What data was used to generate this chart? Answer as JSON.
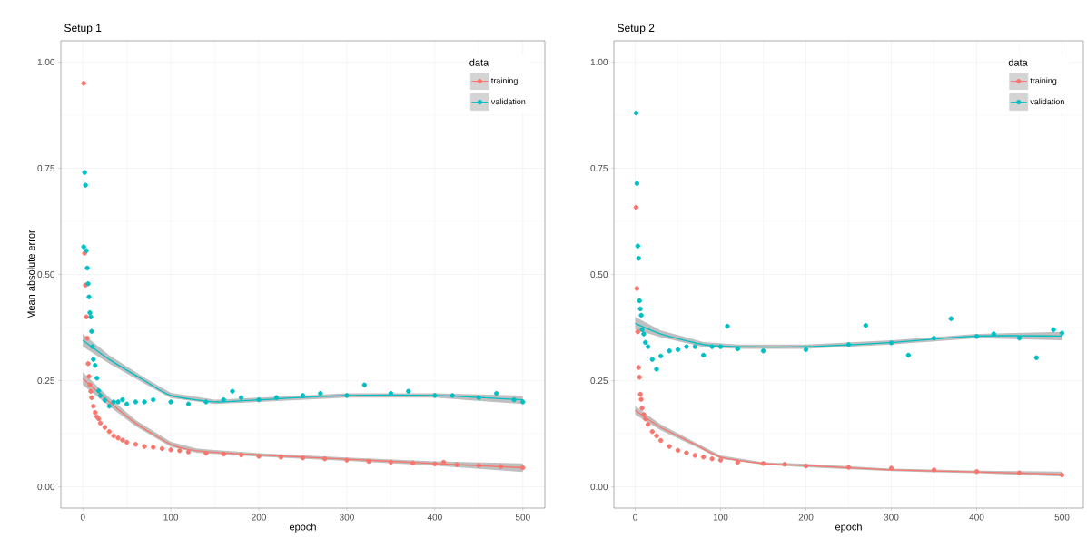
{
  "chart_data": [
    {
      "type": "scatter",
      "title": "Setup 1",
      "xlabel": "epoch",
      "ylabel": "Mean absolute error",
      "legend_title": "data",
      "legend": "top right",
      "grid": true,
      "xlim": [
        -25,
        525
      ],
      "ylim": [
        -0.05,
        1.05
      ],
      "xticks": [
        0,
        100,
        200,
        300,
        400,
        500
      ],
      "yticks": [
        {
          "value": 0,
          "label": "0.00"
        },
        {
          "value": 0.25,
          "label": "0.25"
        },
        {
          "value": 0.5,
          "label": "0.50"
        },
        {
          "value": 0.75,
          "label": "0.75"
        },
        {
          "value": 1,
          "label": "1.00"
        }
      ],
      "series": [
        {
          "name": "training",
          "marker": "circle",
          "color": "#f8766d",
          "x": [
            1,
            2,
            3,
            4,
            5,
            6,
            7,
            8,
            9,
            10,
            12,
            14,
            16,
            18,
            20,
            25,
            30,
            35,
            40,
            45,
            50,
            60,
            70,
            80,
            90,
            100,
            110,
            120,
            140,
            160,
            180,
            200,
            225,
            250,
            275,
            300,
            325,
            350,
            375,
            400,
            410,
            425,
            450,
            475,
            500
          ],
          "values": [
            0.95,
            0.55,
            0.475,
            0.4,
            0.35,
            0.29,
            0.26,
            0.24,
            0.225,
            0.21,
            0.19,
            0.175,
            0.165,
            0.16,
            0.15,
            0.14,
            0.13,
            0.12,
            0.115,
            0.11,
            0.105,
            0.1,
            0.095,
            0.093,
            0.09,
            0.087,
            0.085,
            0.082,
            0.079,
            0.077,
            0.075,
            0.072,
            0.07,
            0.068,
            0.066,
            0.063,
            0.06,
            0.058,
            0.056,
            0.054,
            0.058,
            0.052,
            0.05,
            0.048,
            0.045
          ]
        },
        {
          "name": "validation",
          "marker": "circle",
          "color": "#00bfc4",
          "x": [
            1,
            2,
            3,
            4,
            5,
            6,
            7,
            8,
            9,
            10,
            11,
            12,
            14,
            16,
            18,
            20,
            25,
            30,
            35,
            40,
            45,
            50,
            60,
            70,
            80,
            100,
            120,
            140,
            160,
            170,
            180,
            200,
            220,
            250,
            270,
            300,
            320,
            350,
            370,
            400,
            420,
            450,
            470,
            490,
            500
          ],
          "values": [
            0.565,
            0.74,
            0.71,
            0.556,
            0.515,
            0.478,
            0.447,
            0.41,
            0.4,
            0.366,
            0.33,
            0.3,
            0.286,
            0.256,
            0.226,
            0.215,
            0.204,
            0.19,
            0.2,
            0.2,
            0.205,
            0.195,
            0.2,
            0.2,
            0.205,
            0.2,
            0.195,
            0.2,
            0.205,
            0.225,
            0.21,
            0.205,
            0.21,
            0.215,
            0.22,
            0.215,
            0.24,
            0.22,
            0.225,
            0.215,
            0.215,
            0.21,
            0.22,
            0.205,
            0.2
          ]
        },
        {
          "type": "line",
          "color": "#f8766d",
          "x": [
            0,
            30,
            60,
            100,
            130,
            200,
            300,
            400,
            500
          ],
          "values": [
            0.255,
            0.2,
            0.15,
            0.1,
            0.085,
            0.075,
            0.065,
            0.055,
            0.045
          ],
          "lower": [
            0.24,
            0.19,
            0.143,
            0.094,
            0.08,
            0.071,
            0.061,
            0.05,
            0.035
          ],
          "upper": [
            0.27,
            0.21,
            0.157,
            0.106,
            0.09,
            0.079,
            0.069,
            0.06,
            0.055
          ]
        },
        {
          "type": "line",
          "color": "#00bfc4",
          "x": [
            0,
            30,
            70,
            100,
            150,
            200,
            300,
            400,
            500
          ],
          "values": [
            0.345,
            0.3,
            0.25,
            0.215,
            0.2,
            0.205,
            0.215,
            0.215,
            0.205
          ],
          "lower": [
            0.33,
            0.29,
            0.243,
            0.209,
            0.195,
            0.2,
            0.21,
            0.21,
            0.195
          ],
          "upper": [
            0.36,
            0.31,
            0.257,
            0.221,
            0.205,
            0.21,
            0.22,
            0.22,
            0.215
          ]
        }
      ]
    },
    {
      "type": "scatter",
      "title": "Setup 2",
      "xlabel": "epoch",
      "legend_title": "data",
      "legend": "top right",
      "grid": true,
      "xlim": [
        -25,
        525
      ],
      "ylim": [
        -0.05,
        1.05
      ],
      "xticks": [
        0,
        100,
        200,
        300,
        400,
        500
      ],
      "yticks": [
        {
          "value": 0,
          "label": "0.00"
        },
        {
          "value": 0.25,
          "label": "0.25"
        },
        {
          "value": 0.5,
          "label": "0.50"
        },
        {
          "value": 0.75,
          "label": "0.75"
        },
        {
          "value": 1,
          "label": "1.00"
        }
      ],
      "series": [
        {
          "name": "training",
          "marker": "circle",
          "color": "#f8766d",
          "x": [
            1,
            2,
            3,
            4,
            5,
            6,
            7,
            8,
            10,
            12,
            15,
            20,
            25,
            30,
            40,
            50,
            60,
            70,
            80,
            90,
            100,
            120,
            150,
            175,
            200,
            250,
            300,
            350,
            400,
            450,
            500
          ],
          "values": [
            0.658,
            0.467,
            0.365,
            0.281,
            0.258,
            0.218,
            0.206,
            0.185,
            0.17,
            0.16,
            0.147,
            0.13,
            0.12,
            0.109,
            0.095,
            0.086,
            0.08,
            0.074,
            0.07,
            0.066,
            0.063,
            0.058,
            0.055,
            0.053,
            0.049,
            0.046,
            0.044,
            0.04,
            0.036,
            0.033,
            0.028
          ]
        },
        {
          "name": "validation",
          "marker": "circle",
          "color": "#00bfc4",
          "x": [
            1,
            2,
            3,
            4,
            5,
            6,
            7,
            8,
            10,
            12,
            15,
            20,
            25,
            30,
            40,
            50,
            60,
            70,
            80,
            90,
            100,
            108,
            120,
            150,
            200,
            250,
            270,
            300,
            320,
            350,
            370,
            400,
            420,
            450,
            470,
            490,
            500
          ],
          "values": [
            0.88,
            0.714,
            0.567,
            0.538,
            0.438,
            0.419,
            0.404,
            0.37,
            0.36,
            0.34,
            0.33,
            0.3,
            0.277,
            0.308,
            0.32,
            0.323,
            0.33,
            0.33,
            0.31,
            0.33,
            0.33,
            0.378,
            0.325,
            0.32,
            0.323,
            0.335,
            0.38,
            0.339,
            0.31,
            0.35,
            0.396,
            0.354,
            0.36,
            0.35,
            0.304,
            0.37,
            0.362
          ]
        },
        {
          "type": "line",
          "color": "#f8766d",
          "x": [
            0,
            30,
            70,
            100,
            150,
            200,
            300,
            400,
            500
          ],
          "values": [
            0.18,
            0.14,
            0.1,
            0.07,
            0.055,
            0.05,
            0.04,
            0.035,
            0.03
          ],
          "lower": [
            0.17,
            0.133,
            0.095,
            0.066,
            0.052,
            0.046,
            0.037,
            0.032,
            0.024
          ],
          "upper": [
            0.19,
            0.147,
            0.105,
            0.074,
            0.058,
            0.054,
            0.043,
            0.038,
            0.036
          ]
        },
        {
          "type": "line",
          "color": "#00bfc4",
          "x": [
            0,
            30,
            80,
            120,
            200,
            300,
            400,
            500
          ],
          "values": [
            0.385,
            0.36,
            0.335,
            0.33,
            0.33,
            0.34,
            0.355,
            0.355
          ],
          "lower": [
            0.37,
            0.352,
            0.329,
            0.325,
            0.325,
            0.335,
            0.35,
            0.345
          ],
          "upper": [
            0.4,
            0.368,
            0.341,
            0.335,
            0.335,
            0.345,
            0.36,
            0.365
          ]
        }
      ]
    }
  ]
}
